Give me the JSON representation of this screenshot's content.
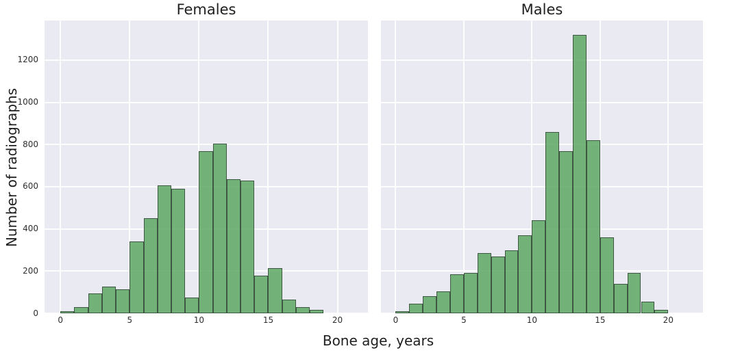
{
  "figure": {
    "xlabel": "Bone age, years",
    "ylabel": "Number of radiographs",
    "background": "#ffffff"
  },
  "style": {
    "plot_background": "#eaeaf2",
    "grid_color": "#ffffff",
    "bar_fill": "rgba(93,168,99,0.85)",
    "bar_edge": "#3e5743",
    "text_color": "#262626"
  },
  "chart_data": [
    {
      "type": "bar",
      "title": "Females",
      "xlabel": "Bone age, years",
      "ylabel": "Number of radiographs",
      "bin_start": 0,
      "bin_width": 1,
      "values": [
        10,
        30,
        95,
        125,
        115,
        340,
        450,
        605,
        590,
        75,
        770,
        805,
        635,
        630,
        180,
        215,
        65,
        28,
        15
      ],
      "xticks": [
        0,
        5,
        10,
        15,
        20
      ],
      "yticks": [
        0,
        200,
        400,
        600,
        800,
        1000,
        1200
      ],
      "xlim": [
        -1.15,
        22.2
      ],
      "ylim": [
        0,
        1388
      ],
      "grid": true,
      "legend": false
    },
    {
      "type": "bar",
      "title": "Males",
      "xlabel": "Bone age, years",
      "ylabel": "Number of radiographs",
      "bin_start": 0,
      "bin_width": 1,
      "values": [
        10,
        45,
        80,
        105,
        185,
        190,
        285,
        270,
        300,
        370,
        440,
        860,
        770,
        1320,
        820,
        360,
        140,
        190,
        55,
        15
      ],
      "xticks": [
        0,
        5,
        10,
        15,
        20
      ],
      "yticks": [
        0,
        200,
        400,
        600,
        800,
        1000,
        1200
      ],
      "xlim": [
        -1.08,
        22.55
      ],
      "ylim": [
        0,
        1388
      ],
      "grid": true,
      "legend": false
    }
  ]
}
